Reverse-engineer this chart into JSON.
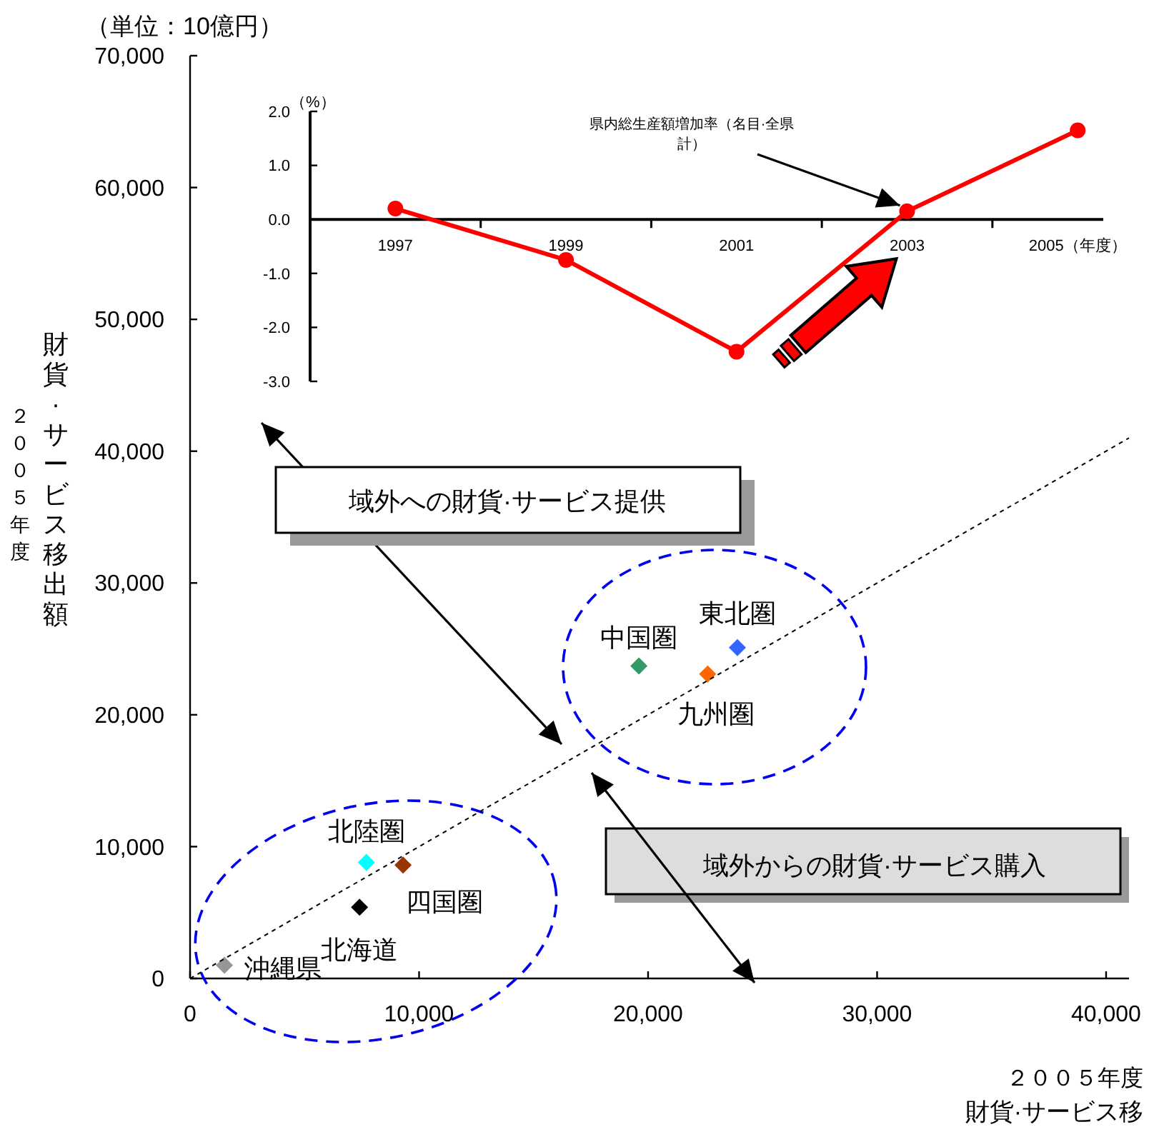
{
  "chart_data": [
    {
      "type": "scatter",
      "xlabel": "財貨·サービス移",
      "ylabel": "財貨·サービス移出額",
      "xlim": [
        0,
        41000
      ],
      "ylim": [
        0,
        70000
      ],
      "xticks": [
        0,
        {
          "value": 10000,
          "label": "10,000"
        },
        {
          "value": 20000,
          "label": "20,000"
        },
        {
          "value": 30000,
          "label": "30,000"
        },
        {
          "value": 40000,
          "label": "40,000"
        }
      ],
      "yticks": [
        0,
        {
          "value": 10000,
          "label": "10,000"
        },
        {
          "value": 20000,
          "label": "20,000"
        },
        {
          "value": 30000,
          "label": "30,000"
        },
        {
          "value": 40000,
          "label": "40,000"
        },
        {
          "value": 50000,
          "label": "50,000"
        },
        {
          "value": 60000,
          "label": "60,000"
        },
        {
          "value": 70000,
          "label": "70,000"
        }
      ],
      "marker": "diamond",
      "legend": false,
      "series": [
        {
          "name": "沖縄県",
          "color": "#969696",
          "x": [
            1500
          ],
          "values": [
            1000
          ]
        },
        {
          "name": "北海道",
          "color": "#000000",
          "x": [
            7400
          ],
          "values": [
            5400
          ]
        },
        {
          "name": "北陸圏",
          "color": "#00ffff",
          "x": [
            7700
          ],
          "values": [
            8800
          ]
        },
        {
          "name": "四国圏",
          "color": "#993300",
          "x": [
            9300
          ],
          "values": [
            8600
          ]
        },
        {
          "name": "中国圏",
          "color": "#339966",
          "x": [
            19600
          ],
          "values": [
            23700
          ]
        },
        {
          "name": "九州圏",
          "color": "#ff6600",
          "x": [
            22600
          ],
          "values": [
            23100
          ]
        },
        {
          "name": "東北圏",
          "color": "#3366ff",
          "x": [
            23900
          ],
          "values": [
            25100
          ]
        },
        {
          "type": "line",
          "color": "#000000",
          "line_style": "dotted",
          "marker": "none",
          "x": [
            0,
            41000
          ],
          "values": [
            0,
            41000
          ]
        }
      ],
      "annotations": [
        "（単位：10億円）",
        "域外への財貨·サービス提供",
        "域外からの財貨·サービス購入",
        "２００５年度",
        "２００５年度"
      ]
    },
    {
      "type": "line",
      "ylabel": "（%）",
      "xlim": [
        1996,
        2005.3
      ],
      "ylim": [
        -3,
        2
      ],
      "xticks": [
        1997,
        1999,
        2001,
        2003,
        {
          "value": 2005,
          "label": "2005（年度）"
        }
      ],
      "yticks": [
        {
          "value": 2,
          "label": "2.0"
        },
        {
          "value": 1,
          "label": "1.0"
        },
        {
          "value": 0,
          "label": "0.0"
        },
        {
          "value": -1,
          "label": "-1.0"
        },
        {
          "value": -2,
          "label": "-2.0"
        },
        {
          "value": -3,
          "label": "-3.0"
        }
      ],
      "marker": "circle",
      "legend": false,
      "series": [
        {
          "color": "#ff0000",
          "x": [
            1997,
            1999,
            2001,
            2003,
            2005
          ],
          "values": [
            0.2,
            -0.75,
            -2.45,
            0.15,
            1.65
          ]
        }
      ],
      "annotations": [
        {
          "text": "県内総生産額増加率（名目·全県計）",
          "x": 2003,
          "y": 0.15
        }
      ]
    }
  ]
}
